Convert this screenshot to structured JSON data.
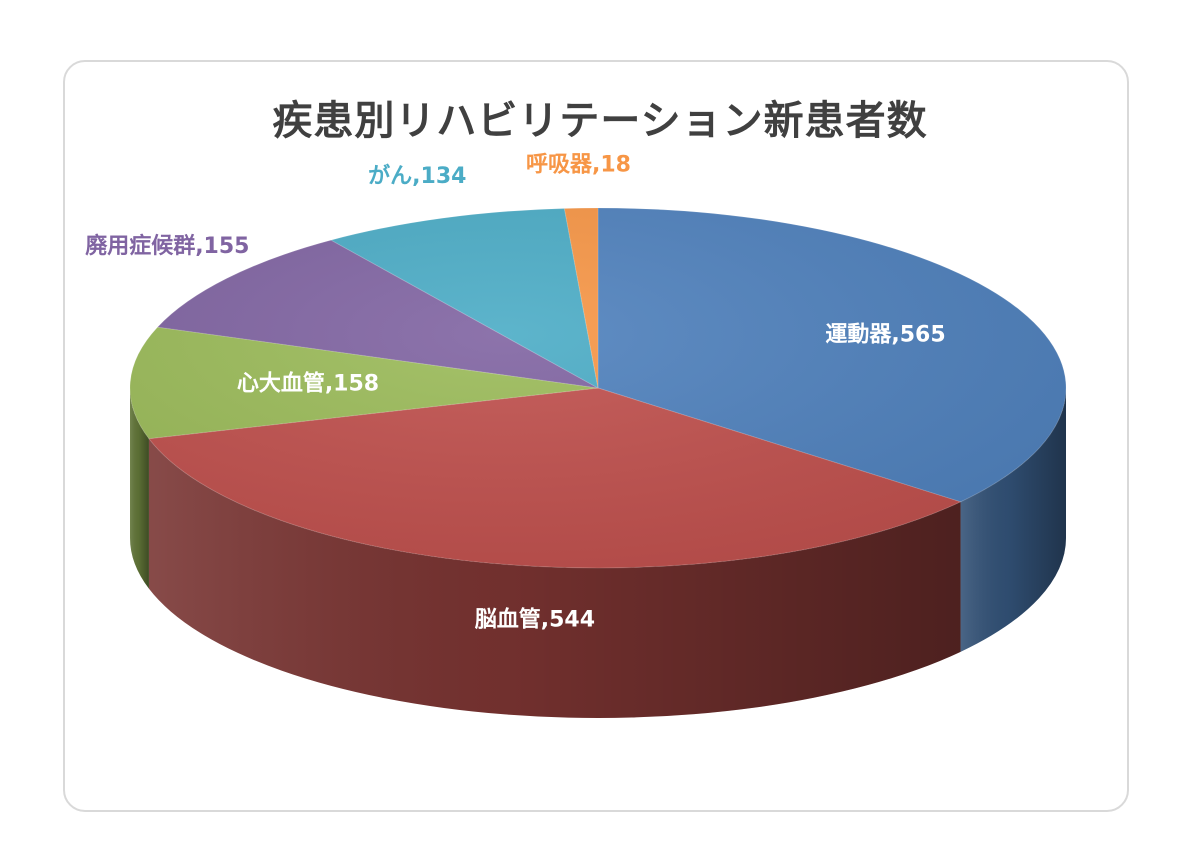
{
  "chart_data": {
    "type": "pie",
    "title": "疾患別リハビリテーション新患者数",
    "label_separator": ",",
    "slices": [
      {
        "label": "運動器",
        "value": 565,
        "color": "#4f81bd",
        "label_color": "#ffffff"
      },
      {
        "label": "脳血管",
        "value": 544,
        "color": "#c0504d",
        "label_color": "#ffffff"
      },
      {
        "label": "心大血管",
        "value": 158,
        "color": "#9bbb59",
        "label_color": "#ffffff"
      },
      {
        "label": "廃用症候群",
        "value": 155,
        "color": "#8064a2",
        "label_color": "#8064a2"
      },
      {
        "label": "がん",
        "value": 134,
        "color": "#4bacc6",
        "label_color": "#4bacc6"
      },
      {
        "label": "呼吸器",
        "value": 18,
        "color": "#f79646",
        "label_color": "#f79646"
      }
    ],
    "start_angle": "12 o'clock",
    "direction": "clockwise",
    "style": "3d-tilted",
    "legend": "none"
  }
}
